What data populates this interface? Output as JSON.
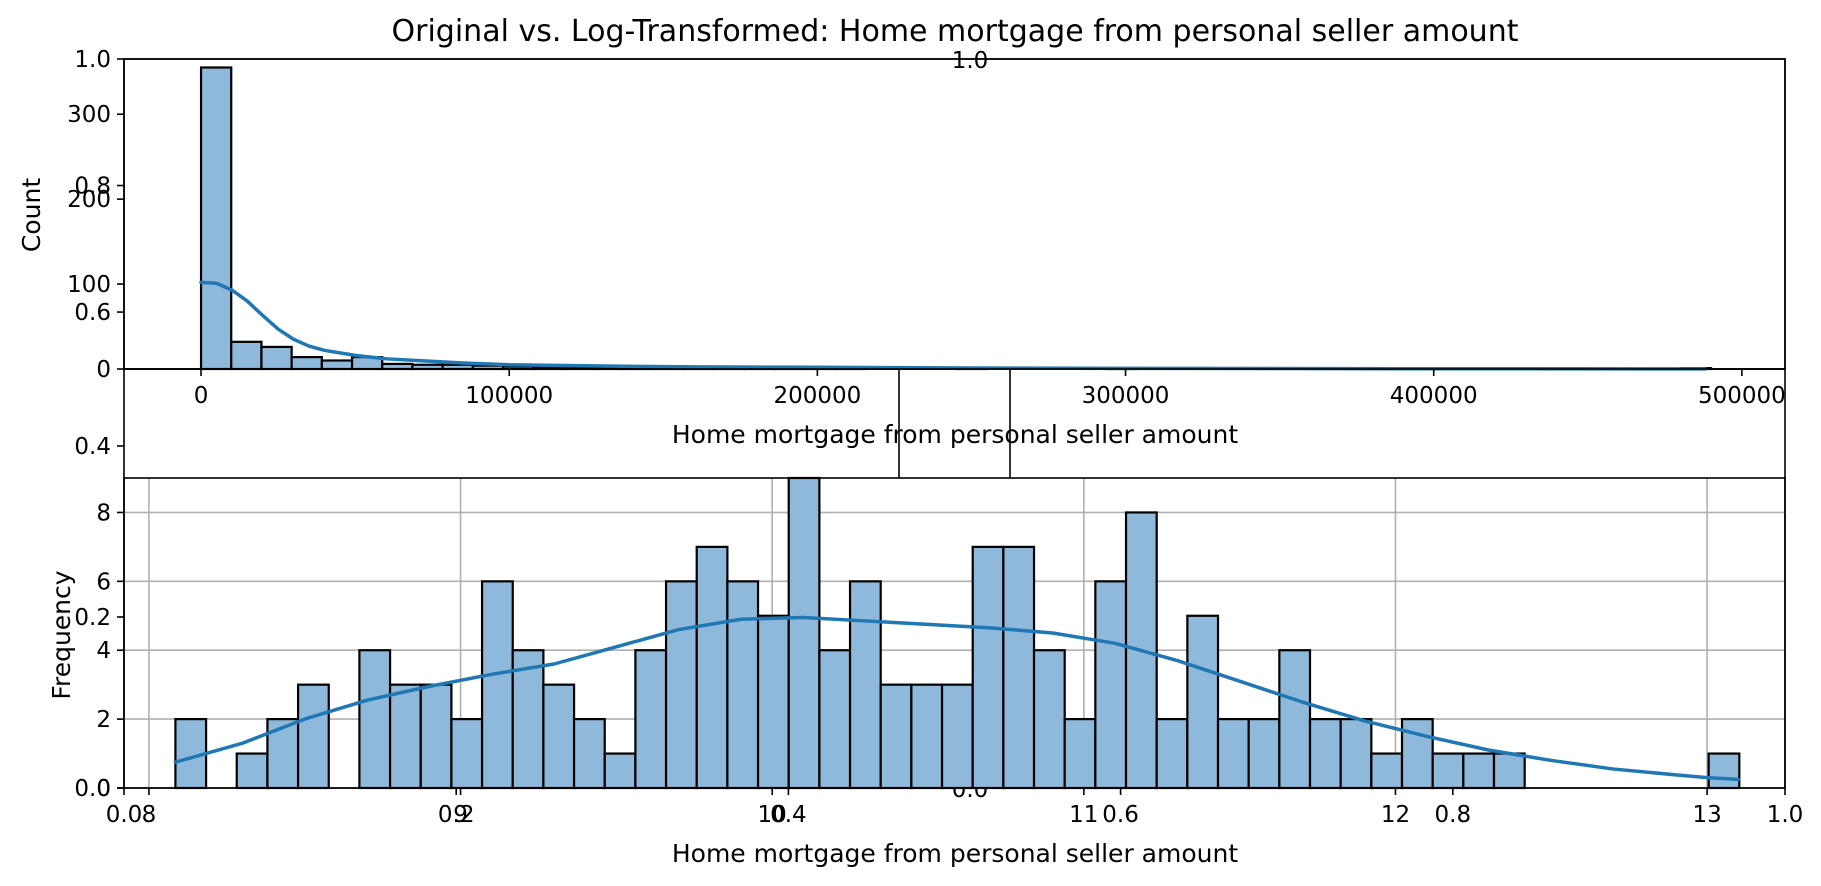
{
  "title": "Original vs. Log-Transformed: Home mortgage from personal seller amount",
  "chart_data": [
    {
      "type": "histogram",
      "role": "original",
      "xlabel": "Home mortgage from personal seller amount",
      "ylabel": "Count",
      "xlim": [
        -25000,
        514000
      ],
      "ylim": [
        0,
        365
      ],
      "xticks": [
        0,
        100000,
        200000,
        300000,
        400000,
        500000
      ],
      "yticks": [
        0,
        100,
        200,
        300
      ],
      "grid": false,
      "bin_start": 0,
      "bin_width": 9800,
      "counts": [
        355,
        32,
        26,
        14,
        10,
        14,
        6,
        5,
        5,
        4,
        3,
        2,
        2,
        1,
        1,
        1,
        1,
        1,
        1,
        1,
        2,
        1,
        0,
        0,
        0,
        1,
        0,
        0,
        0,
        0,
        1,
        0,
        0,
        0,
        0,
        0,
        0,
        0,
        0,
        0,
        0,
        0,
        0,
        0,
        0,
        0,
        0,
        0,
        0,
        1
      ],
      "kde": [
        [
          0,
          102
        ],
        [
          5000,
          101
        ],
        [
          10000,
          93
        ],
        [
          15000,
          80
        ],
        [
          20000,
          63
        ],
        [
          25000,
          47
        ],
        [
          30000,
          35
        ],
        [
          35000,
          27
        ],
        [
          40000,
          22
        ],
        [
          50000,
          16
        ],
        [
          60000,
          12
        ],
        [
          70000,
          10
        ],
        [
          85000,
          7
        ],
        [
          100000,
          5
        ],
        [
          130000,
          3.5
        ],
        [
          160000,
          2.5
        ],
        [
          200000,
          2
        ],
        [
          250000,
          1.2
        ],
        [
          300000,
          0.8
        ],
        [
          400000,
          0.3
        ],
        [
          488000,
          0.1
        ]
      ]
    },
    {
      "type": "histogram",
      "role": "log-transformed",
      "xlabel": "Home mortgage from personal seller amount",
      "ylabel": "Frequency",
      "xlim": [
        7.92,
        13.25
      ],
      "ylim": [
        0,
        9
      ],
      "xticks": [
        8,
        9,
        10,
        11,
        12,
        13
      ],
      "yticks": [
        0,
        2,
        4,
        6,
        8
      ],
      "grid": true,
      "bin_start": 8.085,
      "bin_width": 0.0984,
      "counts": [
        2,
        0,
        1,
        2,
        3,
        0,
        4,
        3,
        3,
        2,
        6,
        4,
        3,
        2,
        1,
        4,
        6,
        7,
        6,
        5,
        9,
        4,
        6,
        3,
        3,
        3,
        7,
        7,
        4,
        2,
        6,
        8,
        2,
        5,
        2,
        2,
        4,
        2,
        2,
        1,
        2,
        1,
        1,
        1,
        0,
        0,
        0,
        0,
        0,
        0,
        1
      ],
      "kde": [
        [
          8.085,
          0.75
        ],
        [
          8.3,
          1.3
        ],
        [
          8.5,
          2.0
        ],
        [
          8.7,
          2.55
        ],
        [
          8.9,
          2.95
        ],
        [
          9.1,
          3.3
        ],
        [
          9.3,
          3.6
        ],
        [
          9.5,
          4.1
        ],
        [
          9.7,
          4.6
        ],
        [
          9.9,
          4.9
        ],
        [
          10.1,
          4.95
        ],
        [
          10.3,
          4.85
        ],
        [
          10.5,
          4.75
        ],
        [
          10.7,
          4.65
        ],
        [
          10.9,
          4.5
        ],
        [
          11.1,
          4.2
        ],
        [
          11.3,
          3.7
        ],
        [
          11.5,
          3.1
        ],
        [
          11.7,
          2.5
        ],
        [
          11.9,
          1.95
        ],
        [
          12.1,
          1.5
        ],
        [
          12.3,
          1.1
        ],
        [
          12.5,
          0.8
        ],
        [
          12.7,
          0.55
        ],
        [
          12.9,
          0.38
        ],
        [
          13.0,
          0.3
        ],
        [
          13.1,
          0.25
        ]
      ]
    },
    {
      "type": "empty-axes",
      "role": "overlay-top",
      "xticks": [
        0.0,
        0.2,
        0.4,
        0.6,
        0.8,
        1.0
      ],
      "yticks": [
        0.6,
        0.8,
        1.0
      ],
      "xlim": [
        0,
        1
      ],
      "ylim": [
        0.51,
        1.0
      ]
    },
    {
      "type": "empty-axes",
      "role": "overlay-bottom",
      "xticks": [
        0.0,
        0.2,
        0.4,
        0.6,
        0.8,
        1.0
      ],
      "yticks": [
        0.0,
        0.2,
        0.4
      ],
      "xlim": [
        0,
        1
      ],
      "ylim": [
        0,
        0.49
      ]
    }
  ]
}
